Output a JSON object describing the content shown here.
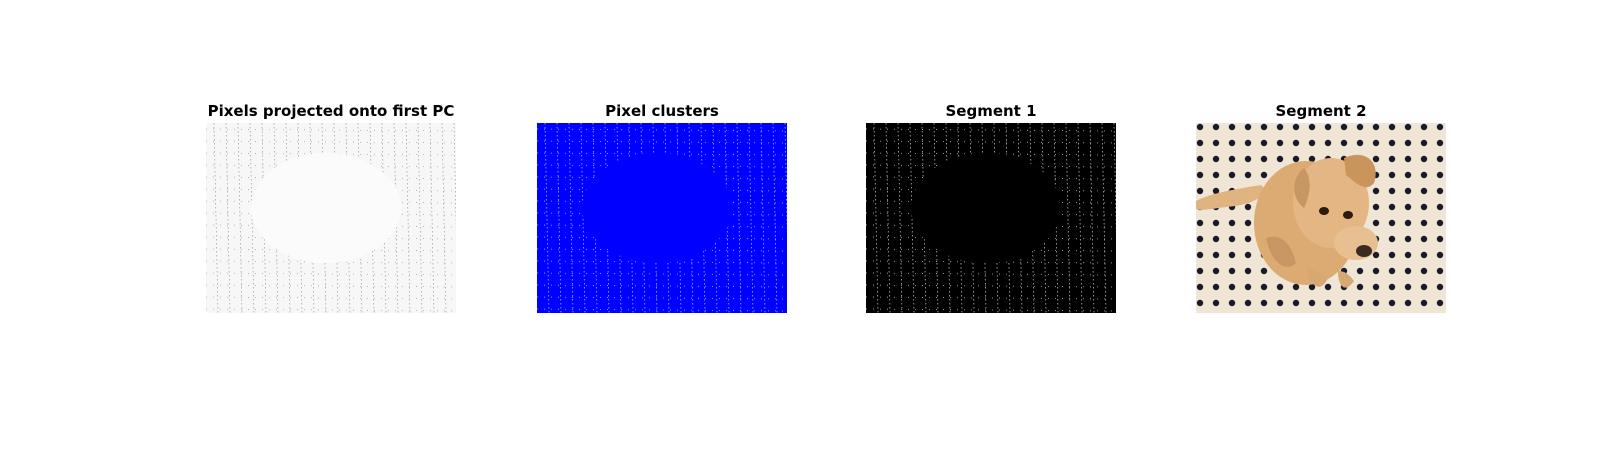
{
  "figure": {
    "background": "#ffffff",
    "panels": [
      {
        "title": "Pixels projected onto first PC",
        "kind": "pc-projection",
        "colors": {
          "bg": "#f7f7f7",
          "grid": "#333333"
        }
      },
      {
        "title": "Pixel clusters",
        "kind": "cluster-map",
        "colors": {
          "bg": "#0000ff",
          "grid": "#9fe6f0"
        }
      },
      {
        "title": "Segment 1",
        "kind": "segment-mask",
        "colors": {
          "bg": "#000000",
          "grid": "#e8e8e8"
        }
      },
      {
        "title": "Segment 2",
        "kind": "segment-photo",
        "colors": {
          "floor": "#efe6d6",
          "dots": "#1a1a2a",
          "dog": "#d9a46e"
        }
      }
    ]
  }
}
